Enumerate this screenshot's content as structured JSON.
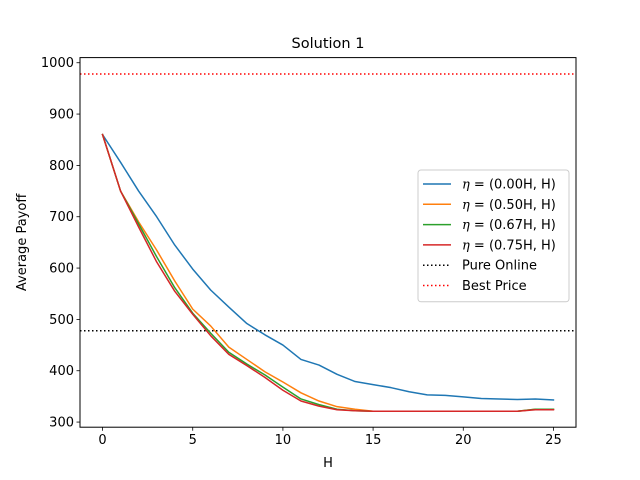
{
  "chart_data": {
    "type": "line",
    "title": "Solution 1",
    "xlabel": "H",
    "ylabel": "Average Payoff",
    "xlim": [
      -1.25,
      26.25
    ],
    "ylim": [
      290,
      1010
    ],
    "xticks": [
      0,
      5,
      10,
      15,
      20,
      25
    ],
    "yticks": [
      300,
      400,
      500,
      600,
      700,
      800,
      900,
      1000
    ],
    "grid": false,
    "legend_position": "center right",
    "x": [
      0,
      1,
      2,
      3,
      4,
      5,
      6,
      7,
      8,
      9,
      10,
      11,
      12,
      13,
      14,
      15,
      16,
      17,
      18,
      19,
      20,
      21,
      22,
      23,
      24,
      25
    ],
    "series": [
      {
        "name": "η = (0.00H, H)",
        "name_symbol": "η",
        "name_rest": " = (0.00H, H)",
        "color": "#1f77b4",
        "values": [
          860,
          806,
          750,
          700,
          645,
          598,
          557,
          524,
          492,
          470,
          450,
          422,
          411,
          393,
          379,
          373,
          367,
          359,
          353,
          352,
          349,
          346,
          345,
          344,
          345,
          343
        ]
      },
      {
        "name": "η = (0.50H, H)",
        "name_symbol": "η",
        "name_rest": " = (0.50H, H)",
        "color": "#ff7f0e",
        "values": [
          860,
          750,
          690,
          635,
          575,
          520,
          487,
          446,
          422,
          398,
          378,
          357,
          341,
          330,
          325,
          321,
          321,
          321,
          321,
          321,
          321,
          321,
          321,
          321,
          325,
          325
        ]
      },
      {
        "name": "η = (0.67H, H)",
        "name_symbol": "η",
        "name_rest": " = (0.67H, H)",
        "color": "#2ca02c",
        "values": [
          860,
          750,
          686,
          622,
          562,
          512,
          473,
          436,
          413,
          392,
          368,
          345,
          334,
          325,
          322,
          321,
          321,
          321,
          321,
          321,
          321,
          321,
          321,
          321,
          325,
          325
        ]
      },
      {
        "name": "η = (0.75H, H)",
        "name_symbol": "η",
        "name_rest": " = (0.75H, H)",
        "color": "#d62728",
        "values": [
          860,
          750,
          680,
          612,
          555,
          510,
          468,
          432,
          410,
          387,
          362,
          341,
          331,
          324,
          322,
          321,
          321,
          321,
          321,
          321,
          321,
          321,
          321,
          321,
          324,
          324
        ]
      }
    ],
    "reference_lines": [
      {
        "name": "Pure Online",
        "value": 478,
        "color": "#000000"
      },
      {
        "name": "Best Price",
        "value": 978,
        "color": "#ff0000"
      }
    ]
  }
}
